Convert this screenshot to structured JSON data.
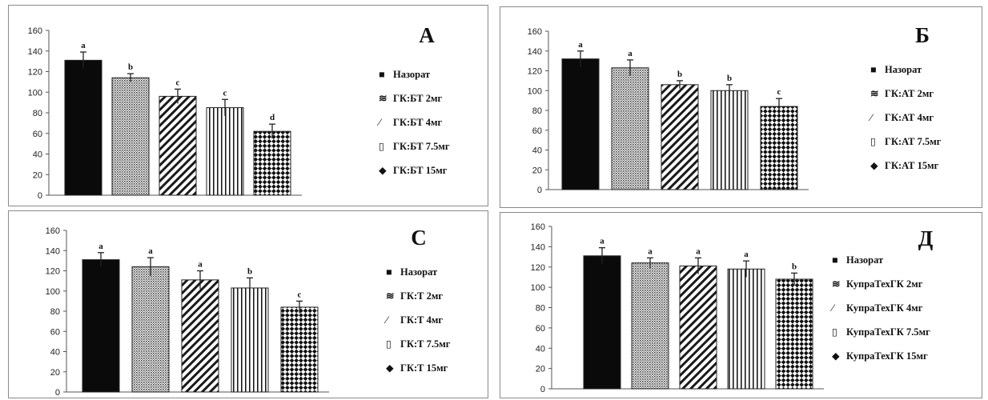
{
  "chart_data": [
    {
      "type": "bar",
      "title": "А",
      "ylim": [
        0,
        160
      ],
      "yticks": [
        "0",
        "20",
        "40",
        "60",
        "80",
        "100",
        "120",
        "140",
        "160"
      ],
      "grid": false,
      "legend_position": "right",
      "categories": [
        "Назорат",
        "ГК:БТ 2мг",
        "ГК:БТ 4мг",
        "ГК:БТ 7.5мг",
        "ГК:БТ 15мг"
      ],
      "values": [
        131,
        114,
        96,
        85,
        62
      ],
      "errors": [
        8,
        4,
        7,
        8,
        7
      ],
      "significance": [
        "a",
        "b",
        "c",
        "c",
        "d"
      ],
      "legend_markers": [
        "■",
        "≋",
        "⁄",
        "▯",
        "◆"
      ]
    },
    {
      "type": "bar",
      "title": "Б",
      "ylim": [
        0,
        160
      ],
      "yticks": [
        "0",
        "20",
        "40",
        "60",
        "80",
        "100",
        "120",
        "140",
        "160"
      ],
      "grid": false,
      "legend_position": "right",
      "categories": [
        "Назорат",
        "ГК:АТ 2мг",
        "ГК:АТ 4мг",
        "ГК:АТ 7.5мг",
        "ГК:АТ 15мг"
      ],
      "values": [
        132,
        123,
        106,
        100,
        84
      ],
      "errors": [
        8,
        8,
        4,
        6,
        8
      ],
      "significance": [
        "a",
        "a",
        "b",
        "b",
        "c"
      ],
      "legend_markers": [
        "■",
        "≋",
        "⁄",
        "▯",
        "◆"
      ]
    },
    {
      "type": "bar",
      "title": "С",
      "ylim": [
        0,
        160
      ],
      "yticks": [
        "0",
        "20",
        "40",
        "60",
        "80",
        "100",
        "120",
        "140",
        "160"
      ],
      "grid": false,
      "legend_position": "right",
      "categories": [
        "Назорат",
        "ГК:Т 2мг",
        "ГК:Т 4мг",
        "ГК:Т 7.5мг",
        "ГК:Т 15мг"
      ],
      "values": [
        131,
        124,
        111,
        103,
        84
      ],
      "errors": [
        7,
        9,
        9,
        10,
        6
      ],
      "significance": [
        "a",
        "a",
        "a",
        "b",
        "c"
      ],
      "legend_markers": [
        "■",
        "≋",
        "⁄",
        "▯",
        "◆"
      ]
    },
    {
      "type": "bar",
      "title": "Д",
      "ylim": [
        0,
        160
      ],
      "yticks": [
        "0",
        "20",
        "40",
        "60",
        "80",
        "100",
        "120",
        "140",
        "160"
      ],
      "grid": false,
      "legend_position": "right",
      "categories": [
        "Назорат",
        "КупраТехГК 2мг",
        "КупраТехГК 4мг",
        "КупраТехГК 7.5мг",
        "КупраТехГК 15мг"
      ],
      "values": [
        131,
        124,
        121,
        118,
        108
      ],
      "errors": [
        8,
        5,
        8,
        8,
        6
      ],
      "significance": [
        "a",
        "a",
        "a",
        "a",
        "b"
      ],
      "legend_markers": [
        "■",
        "≋",
        "⁄",
        "▯",
        "◆"
      ]
    }
  ]
}
